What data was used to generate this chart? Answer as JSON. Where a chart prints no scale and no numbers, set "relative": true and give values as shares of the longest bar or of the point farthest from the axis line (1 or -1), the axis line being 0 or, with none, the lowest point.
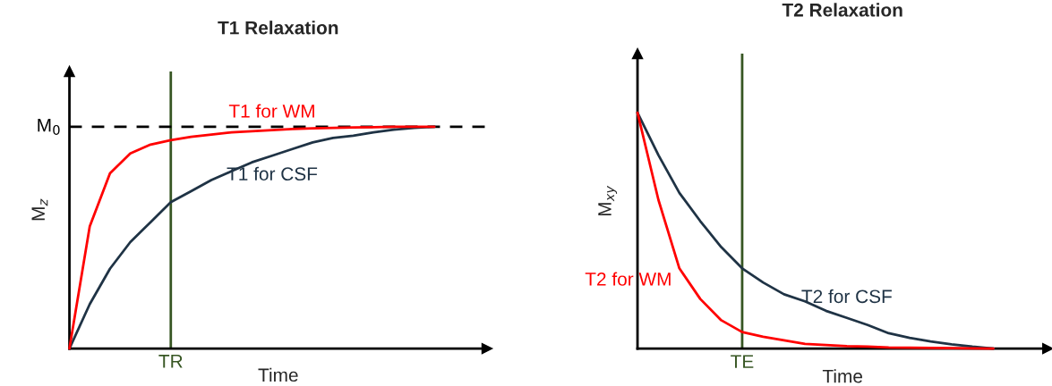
{
  "chart_data": [
    {
      "type": "line",
      "title": "T1 Relaxation",
      "xlabel": "Time",
      "ylabel": "M$_{z}$",
      "relative": true,
      "legend": false,
      "annotations": [
        "TR"
      ],
      "categories": [
        null,
        null,
        null,
        null,
        null,
        null,
        null,
        null,
        null,
        null,
        null,
        null,
        null,
        null,
        null,
        null,
        null,
        null,
        null,
        null,
        null
      ],
      "series": [
        {
          "name": "T1 for WM",
          "color": "#ff0000",
          "values": [
            0,
            0.55,
            0.79,
            0.88,
            0.92,
            0.94,
            0.955,
            0.965,
            0.975,
            0.98,
            0.985,
            0.99,
            0.993,
            0.995,
            0.997,
            0.998,
            1,
            1,
            1,
            null,
            null
          ]
        },
        {
          "name": "T1 for CSF",
          "color": "#1f3345",
          "values": [
            0,
            0.2,
            0.36,
            0.48,
            0.57,
            0.66,
            0.71,
            0.76,
            0.8,
            0.84,
            0.87,
            0.9,
            0.93,
            0.95,
            0.96,
            0.975,
            0.987,
            0.995,
            1,
            null,
            null
          ]
        }
      ],
      "ref_lines": [
        {
          "axis": "y",
          "value": 1,
          "label": "M$_{0}$",
          "color": "#000000",
          "line_style": "dashed"
        }
      ]
    },
    {
      "type": "line",
      "title": "T2 Relaxation",
      "xlabel": "Time",
      "ylabel": "M$_{xy}$",
      "relative": true,
      "legend": false,
      "annotations": [
        "TE"
      ],
      "categories": [
        null,
        null,
        null,
        null,
        null,
        null,
        null,
        null,
        null,
        null,
        null,
        null,
        null,
        null,
        null,
        null,
        null,
        null,
        null,
        null
      ],
      "series": [
        {
          "name": "T2 for WM",
          "color": "#ff0000",
          "values": [
            1,
            0.63,
            0.34,
            0.21,
            0.12,
            0.07,
            0.05,
            0.035,
            0.02,
            0.015,
            0.01,
            0.008,
            0.005,
            0.004,
            0.003,
            0.002,
            0.001,
            0,
            null,
            null
          ]
        },
        {
          "name": "T2 for CSF",
          "color": "#1f3345",
          "values": [
            1,
            0.82,
            0.66,
            0.54,
            0.43,
            0.34,
            0.28,
            0.23,
            0.2,
            0.16,
            0.13,
            0.1,
            0.065,
            0.045,
            0.03,
            0.018,
            0.008,
            0,
            null,
            null
          ]
        }
      ]
    }
  ]
}
